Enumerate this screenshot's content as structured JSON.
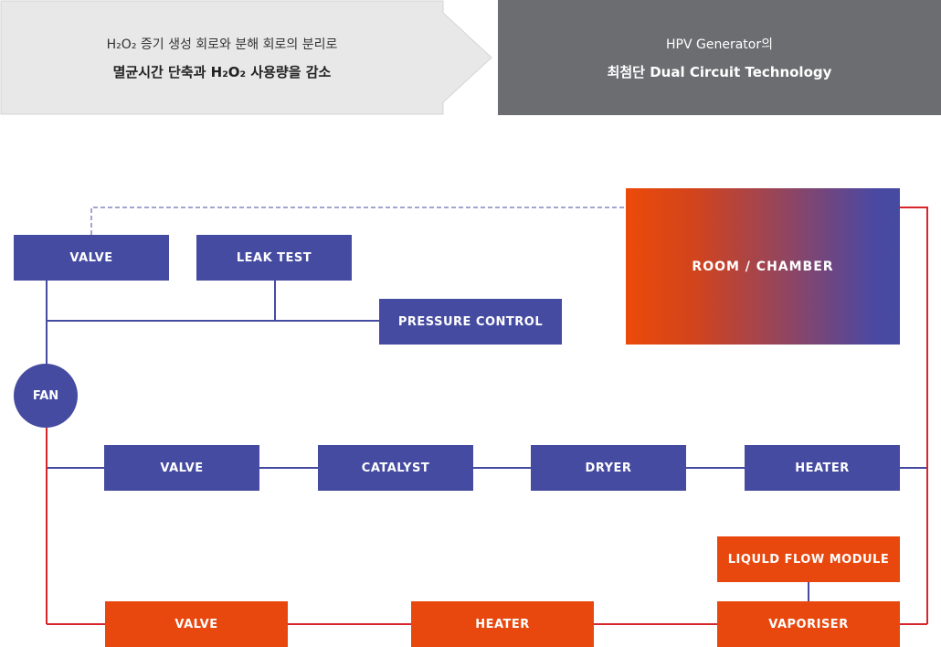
{
  "banner": {
    "left_line1": "H₂O₂ 증기 생성 회로와 분해 회로의 분리로",
    "left_line2": "멸균시간 단축과 H₂O₂ 사용량을 감소",
    "right_line1": "HPV Generator의",
    "right_line2": "최첨단 Dual Circuit Technology"
  },
  "colors": {
    "blue": "#454ba0",
    "orange": "#e8470e",
    "red_line": "#d8252b",
    "banner_gray": "#6c6d70",
    "banner_light": "#e8e8e8"
  },
  "diagram": {
    "room_chamber": "ROOM / CHAMBER",
    "valve_top": "VALVE",
    "leak_test": "LEAK TEST",
    "pressure_control": "PRESSURE CONTROL",
    "fan": "FAN",
    "decomposition_row": {
      "valve": "VALVE",
      "catalyst": "CATALYST",
      "dryer": "DRYER",
      "heater": "HEATER"
    },
    "liquid_flow_module": "LIQULD FLOW MODULE",
    "generation_row": {
      "valve": "VALVE",
      "heater": "HEATER",
      "vaporiser": "VAPORISER"
    }
  }
}
